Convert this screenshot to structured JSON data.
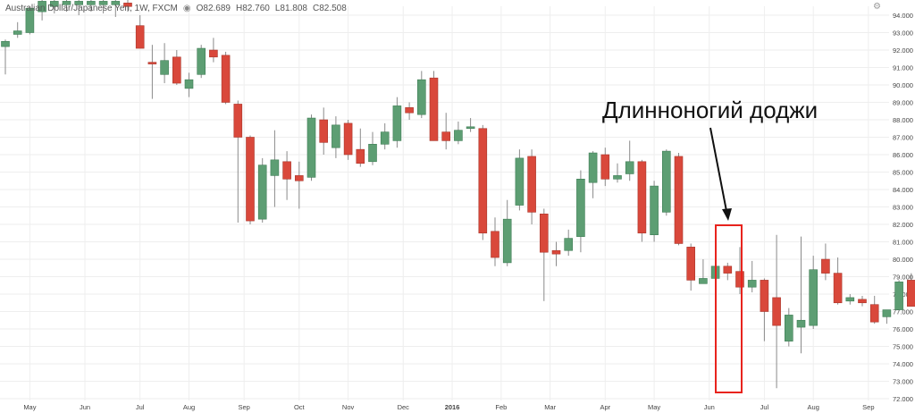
{
  "header": {
    "symbol": "Australian Dollar/Japanese Yen, 1W, FXCM",
    "eye_icon": "eye-icon",
    "ohlc": [
      {
        "key": "O",
        "value": "82.689"
      },
      {
        "key": "H",
        "value": "82.760"
      },
      {
        "key": "L",
        "value": "81.808"
      },
      {
        "key": "C",
        "value": "82.508"
      }
    ]
  },
  "settings_icon": "gear-icon",
  "annotation": {
    "label": "Длинноногий доджи",
    "box_color": "#e8231d"
  },
  "colors": {
    "up": "#5d9e73",
    "down": "#d9483b",
    "grid": "#eeeeee",
    "wick": "#8a8a8a"
  },
  "chart_data": {
    "type": "candlestick",
    "title": "",
    "ylim": [
      72.0,
      94.0
    ],
    "y_ticks": [
      "72.000",
      "73.000",
      "74.000",
      "75.000",
      "76.000",
      "77.000",
      "78.000",
      "79.000",
      "80.000",
      "81.000",
      "82.000",
      "83.000",
      "84.000",
      "85.000",
      "86.000",
      "87.000",
      "88.000",
      "89.000",
      "90.000",
      "91.000",
      "92.000",
      "93.000",
      "94.000"
    ],
    "x_ticks": [
      {
        "label": "May",
        "index": 2,
        "bold": false
      },
      {
        "label": "Jun",
        "index": 6.5,
        "bold": false
      },
      {
        "label": "Jul",
        "index": 11,
        "bold": false
      },
      {
        "label": "Aug",
        "index": 15,
        "bold": false
      },
      {
        "label": "Sep",
        "index": 19.5,
        "bold": false
      },
      {
        "label": "Oct",
        "index": 24,
        "bold": false
      },
      {
        "label": "Nov",
        "index": 28,
        "bold": false
      },
      {
        "label": "Dec",
        "index": 32.5,
        "bold": false
      },
      {
        "label": "2016",
        "index": 36.5,
        "bold": true
      },
      {
        "label": "Feb",
        "index": 40.5,
        "bold": false
      },
      {
        "label": "Mar",
        "index": 44.5,
        "bold": false
      },
      {
        "label": "Apr",
        "index": 49,
        "bold": false
      },
      {
        "label": "May",
        "index": 53,
        "bold": false
      },
      {
        "label": "Jun",
        "index": 57.5,
        "bold": false
      },
      {
        "label": "Jul",
        "index": 62,
        "bold": false
      },
      {
        "label": "Aug",
        "index": 66,
        "bold": false
      },
      {
        "label": "Sep",
        "index": 70.5,
        "bold": false
      }
    ],
    "highlight_index": 59,
    "candles": [
      {
        "o": 92.2,
        "h": 92.6,
        "l": 90.6,
        "c": 92.5
      },
      {
        "o": 92.9,
        "h": 93.6,
        "l": 92.7,
        "c": 93.1
      },
      {
        "o": 93.0,
        "h": 94.5,
        "l": 92.9,
        "c": 94.4
      },
      {
        "o": 94.2,
        "h": 94.9,
        "l": 93.7,
        "c": 94.8
      },
      {
        "o": 94.5,
        "h": 95.0,
        "l": 94.1,
        "c": 94.8
      },
      {
        "o": 94.6,
        "h": 95.0,
        "l": 94.2,
        "c": 94.8
      },
      {
        "o": 94.6,
        "h": 95.0,
        "l": 94.0,
        "c": 94.8
      },
      {
        "o": 94.6,
        "h": 95.0,
        "l": 94.2,
        "c": 94.8
      },
      {
        "o": 94.6,
        "h": 95.0,
        "l": 94.1,
        "c": 94.8
      },
      {
        "o": 94.6,
        "h": 95.0,
        "l": 93.9,
        "c": 94.8
      },
      {
        "o": 94.7,
        "h": 95.0,
        "l": 94.2,
        "c": 94.5
      },
      {
        "o": 93.4,
        "h": 94.0,
        "l": 92.2,
        "c": 92.1
      },
      {
        "o": 91.3,
        "h": 92.3,
        "l": 89.2,
        "c": 91.2
      },
      {
        "o": 90.6,
        "h": 92.4,
        "l": 90.1,
        "c": 91.4
      },
      {
        "o": 91.6,
        "h": 92.0,
        "l": 90.0,
        "c": 90.1
      },
      {
        "o": 89.8,
        "h": 90.7,
        "l": 89.3,
        "c": 90.3
      },
      {
        "o": 90.6,
        "h": 92.3,
        "l": 90.4,
        "c": 92.1
      },
      {
        "o": 92.0,
        "h": 92.7,
        "l": 91.3,
        "c": 91.6
      },
      {
        "o": 91.7,
        "h": 91.9,
        "l": 88.9,
        "c": 89.0
      },
      {
        "o": 88.9,
        "h": 89.1,
        "l": 82.1,
        "c": 87.0
      },
      {
        "o": 87.0,
        "h": 87.1,
        "l": 82.0,
        "c": 82.2
      },
      {
        "o": 82.3,
        "h": 85.8,
        "l": 82.1,
        "c": 85.4
      },
      {
        "o": 84.8,
        "h": 87.4,
        "l": 83.0,
        "c": 85.7
      },
      {
        "o": 85.6,
        "h": 86.2,
        "l": 83.4,
        "c": 84.6
      },
      {
        "o": 84.8,
        "h": 85.6,
        "l": 82.9,
        "c": 84.5
      },
      {
        "o": 84.7,
        "h": 88.3,
        "l": 84.5,
        "c": 88.1
      },
      {
        "o": 88.0,
        "h": 88.7,
        "l": 86.0,
        "c": 86.7
      },
      {
        "o": 86.4,
        "h": 88.2,
        "l": 85.8,
        "c": 87.7
      },
      {
        "o": 87.8,
        "h": 88.0,
        "l": 85.7,
        "c": 86.0
      },
      {
        "o": 86.3,
        "h": 87.5,
        "l": 85.3,
        "c": 85.5
      },
      {
        "o": 85.6,
        "h": 87.3,
        "l": 85.4,
        "c": 86.6
      },
      {
        "o": 86.6,
        "h": 87.8,
        "l": 86.3,
        "c": 87.3
      },
      {
        "o": 86.8,
        "h": 89.3,
        "l": 86.4,
        "c": 88.8
      },
      {
        "o": 88.7,
        "h": 89.0,
        "l": 88.0,
        "c": 88.4
      },
      {
        "o": 88.3,
        "h": 90.8,
        "l": 88.1,
        "c": 90.3
      },
      {
        "o": 90.4,
        "h": 90.8,
        "l": 86.8,
        "c": 86.8
      },
      {
        "o": 87.3,
        "h": 88.4,
        "l": 86.3,
        "c": 86.8
      },
      {
        "o": 86.8,
        "h": 87.9,
        "l": 86.6,
        "c": 87.4
      },
      {
        "o": 87.5,
        "h": 88.1,
        "l": 87.3,
        "c": 87.6
      },
      {
        "o": 87.5,
        "h": 87.7,
        "l": 81.1,
        "c": 81.5
      },
      {
        "o": 81.6,
        "h": 82.4,
        "l": 79.6,
        "c": 80.1
      },
      {
        "o": 79.8,
        "h": 83.4,
        "l": 79.6,
        "c": 82.3
      },
      {
        "o": 83.1,
        "h": 86.3,
        "l": 82.8,
        "c": 85.8
      },
      {
        "o": 85.9,
        "h": 86.3,
        "l": 82.0,
        "c": 82.7
      },
      {
        "o": 82.6,
        "h": 82.9,
        "l": 77.6,
        "c": 80.4
      },
      {
        "o": 80.5,
        "h": 81.0,
        "l": 79.6,
        "c": 80.3
      },
      {
        "o": 80.5,
        "h": 81.7,
        "l": 80.2,
        "c": 81.2
      },
      {
        "o": 81.3,
        "h": 85.1,
        "l": 80.4,
        "c": 84.6
      },
      {
        "o": 84.4,
        "h": 86.2,
        "l": 83.5,
        "c": 86.1
      },
      {
        "o": 86.0,
        "h": 86.4,
        "l": 84.2,
        "c": 84.6
      },
      {
        "o": 84.6,
        "h": 85.5,
        "l": 84.4,
        "c": 84.8
      },
      {
        "o": 84.9,
        "h": 86.8,
        "l": 84.5,
        "c": 85.6
      },
      {
        "o": 85.6,
        "h": 85.7,
        "l": 81.0,
        "c": 81.5
      },
      {
        "o": 81.4,
        "h": 84.5,
        "l": 81.0,
        "c": 84.2
      },
      {
        "o": 82.7,
        "h": 86.3,
        "l": 82.5,
        "c": 86.2
      },
      {
        "o": 85.9,
        "h": 86.1,
        "l": 80.8,
        "c": 80.9
      },
      {
        "o": 80.7,
        "h": 80.9,
        "l": 78.2,
        "c": 78.8
      },
      {
        "o": 78.6,
        "h": 80.0,
        "l": 78.6,
        "c": 78.9
      },
      {
        "o": 78.9,
        "h": 80.0,
        "l": 78.6,
        "c": 79.6
      },
      {
        "o": 79.6,
        "h": 79.8,
        "l": 78.8,
        "c": 79.2
      },
      {
        "o": 79.3,
        "h": 80.7,
        "l": 78.0,
        "c": 78.4
      },
      {
        "o": 78.4,
        "h": 79.9,
        "l": 78.1,
        "c": 78.8
      },
      {
        "o": 78.8,
        "h": 78.9,
        "l": 75.3,
        "c": 77.0
      },
      {
        "o": 77.8,
        "h": 81.4,
        "l": 72.6,
        "c": 76.2
      },
      {
        "o": 75.3,
        "h": 77.2,
        "l": 75.0,
        "c": 76.8
      },
      {
        "o": 76.1,
        "h": 81.3,
        "l": 74.6,
        "c": 76.5
      },
      {
        "o": 76.2,
        "h": 80.2,
        "l": 76.0,
        "c": 79.4
      },
      {
        "o": 80.0,
        "h": 80.9,
        "l": 78.8,
        "c": 79.2
      },
      {
        "o": 79.2,
        "h": 80.1,
        "l": 77.4,
        "c": 77.5
      },
      {
        "o": 77.6,
        "h": 78.0,
        "l": 77.4,
        "c": 77.8
      },
      {
        "o": 77.7,
        "h": 77.9,
        "l": 77.3,
        "c": 77.5
      },
      {
        "o": 77.4,
        "h": 77.9,
        "l": 76.3,
        "c": 76.4
      },
      {
        "o": 76.7,
        "h": 77.1,
        "l": 76.3,
        "c": 77.1
      },
      {
        "o": 77.1,
        "h": 78.8,
        "l": 77.0,
        "c": 78.7
      },
      {
        "o": 78.8,
        "h": 79.2,
        "l": 77.3,
        "c": 77.3
      },
      {
        "o": 77.3,
        "h": 77.5,
        "l": 76.2,
        "c": 76.5
      },
      {
        "o": 76.3,
        "h": 77.6,
        "l": 76.2,
        "c": 77.0
      }
    ]
  }
}
